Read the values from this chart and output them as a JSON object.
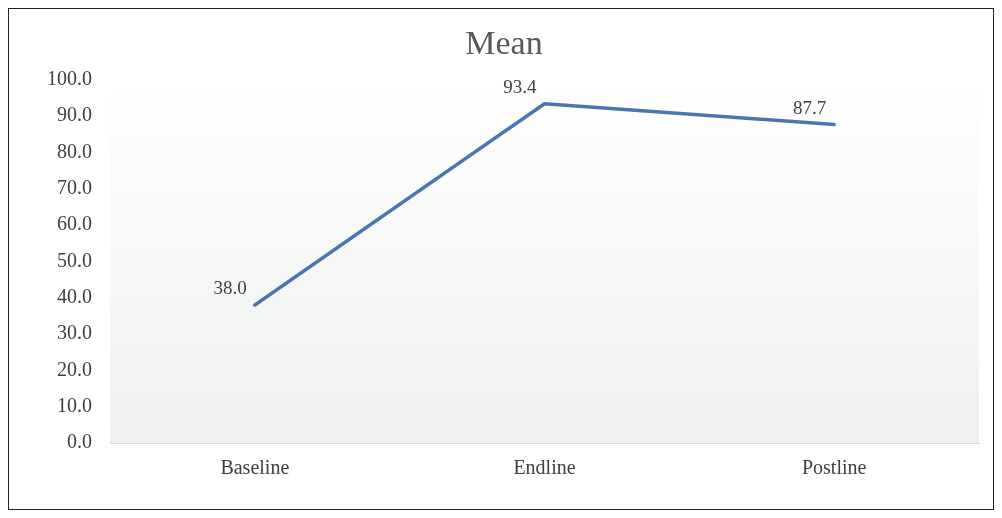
{
  "chart_data": {
    "type": "line",
    "title": "Mean",
    "categories": [
      "Baseline",
      "Endline",
      "Postline"
    ],
    "series": [
      {
        "color": "#4a76b0",
        "values": [
          38.0,
          93.4,
          87.7
        ]
      }
    ],
    "value_labels": [
      "38.0",
      "93.4",
      "87.7"
    ],
    "ylim": [
      0,
      100
    ],
    "yticks": [
      {
        "value": 0,
        "label": "0.0"
      },
      {
        "value": 10,
        "label": "10.0"
      },
      {
        "value": 20,
        "label": "20.0"
      },
      {
        "value": 30,
        "label": "30.0"
      },
      {
        "value": 40,
        "label": "40.0"
      },
      {
        "value": 50,
        "label": "50.0"
      },
      {
        "value": 60,
        "label": "60.0"
      },
      {
        "value": 70,
        "label": "70.0"
      },
      {
        "value": 80,
        "label": "80.0"
      },
      {
        "value": 90,
        "label": "90.0"
      },
      {
        "value": 100,
        "label": "100.0"
      }
    ],
    "grid": false,
    "legend": false,
    "marker": "none",
    "line_style": "solid"
  }
}
